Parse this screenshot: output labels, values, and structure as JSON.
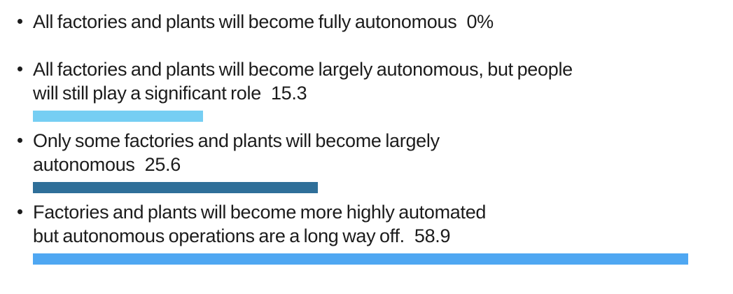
{
  "chart_data": {
    "type": "bar",
    "orientation": "horizontal",
    "title": "",
    "xlabel": "",
    "ylabel": "",
    "legend": false,
    "gridlines": false,
    "axes_shown": false,
    "xlim": [
      0,
      62
    ],
    "categories": [
      "All factories and plants will become fully autonomous",
      "All factories and plants will become largely autonomous, but people will still play a significant role",
      "Only some factories and plants will become largely autonomous",
      "Factories and plants will become more highly automated but autonomous operations are a long way off."
    ],
    "values": [
      0,
      15.3,
      25.6,
      58.9
    ],
    "value_labels": [
      "0%",
      "15.3",
      "25.6",
      "58.9"
    ],
    "bar_colors": [
      null,
      "#76CEF3",
      "#2F6F99",
      "#4FA7F2"
    ],
    "colors": {
      "text": "#1C1C1C",
      "background": "#FFFFFF",
      "bar_light_blue": "#76CEF3",
      "bar_steel_blue": "#2F6F99",
      "bar_bright_blue": "#4FA7F2"
    },
    "items": [
      {
        "lines": [
          "All factories and plants will become fully autonomous"
        ],
        "value_label": "0%",
        "value": 0
      },
      {
        "lines": [
          "All factories and plants will become largely autonomous, but people",
          "will still play a significant role"
        ],
        "value_label": "15.3",
        "value": 15.3
      },
      {
        "lines": [
          "Only some factories and plants will become largely",
          "autonomous"
        ],
        "value_label": "25.6",
        "value": 25.6
      },
      {
        "lines": [
          "Factories and plants will become more highly automated",
          "but autonomous operations are a long way off."
        ],
        "value_label": "58.9",
        "value": 58.9
      }
    ]
  }
}
